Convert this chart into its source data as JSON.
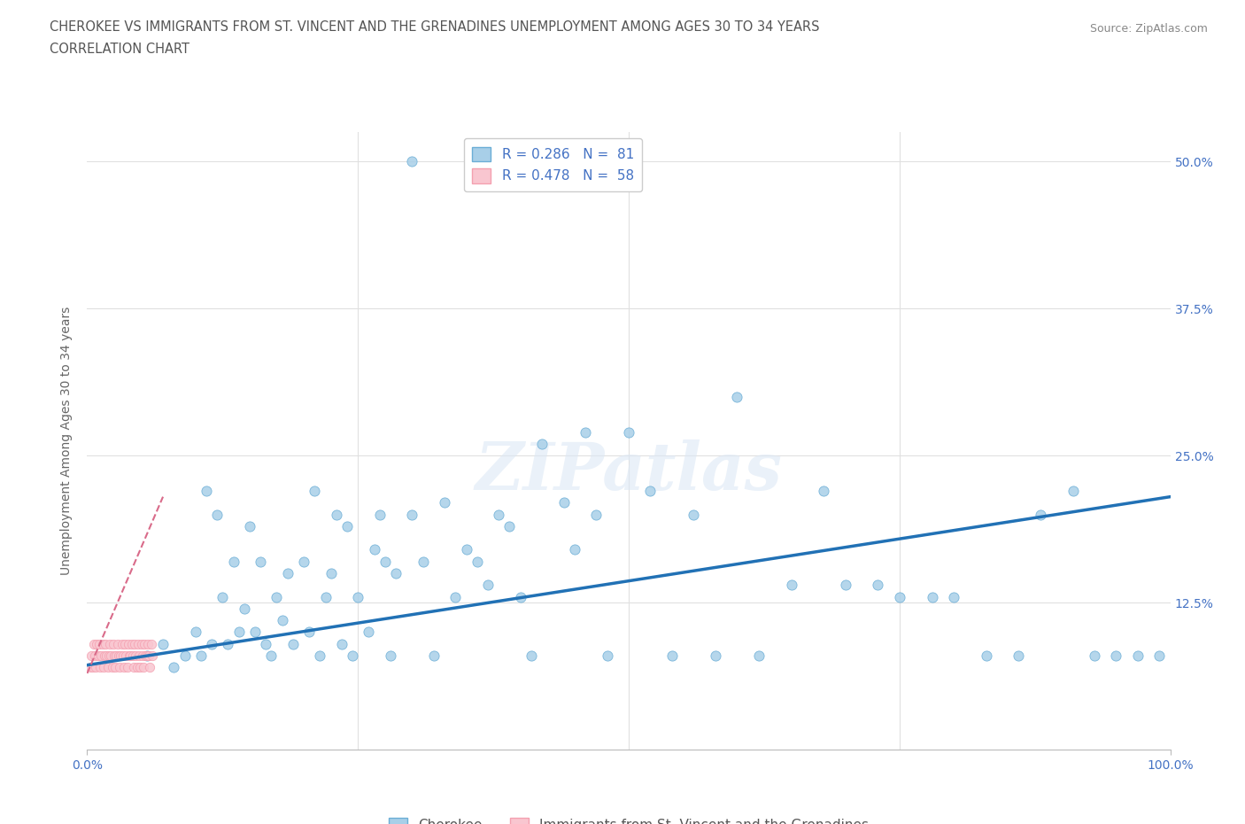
{
  "title_line1": "CHEROKEE VS IMMIGRANTS FROM ST. VINCENT AND THE GRENADINES UNEMPLOYMENT AMONG AGES 30 TO 34 YEARS",
  "title_line2": "CORRELATION CHART",
  "source": "Source: ZipAtlas.com",
  "ylabel": "Unemployment Among Ages 30 to 34 years",
  "xlim": [
    0,
    1.0
  ],
  "ylim": [
    0,
    0.525
  ],
  "ytick_positions": [
    0.0,
    0.125,
    0.25,
    0.375,
    0.5
  ],
  "ytick_labels_right": [
    "",
    "12.5%",
    "25.0%",
    "37.5%",
    "50.0%"
  ],
  "watermark": "ZIPatlas",
  "blue_scatter_color": "#a8cfe8",
  "blue_edge_color": "#6baed6",
  "pink_scatter_color": "#f9c6d0",
  "pink_edge_color": "#f4a0b0",
  "blue_line_color": "#2171b5",
  "pink_line_color": "#d96b8a",
  "title_color": "#555555",
  "axis_label_color": "#666666",
  "tick_color": "#4472C4",
  "source_color": "#888888",
  "grid_color": "#e0e0e0",
  "blue_scatter_x": [
    0.055,
    0.07,
    0.08,
    0.09,
    0.1,
    0.105,
    0.11,
    0.115,
    0.12,
    0.125,
    0.13,
    0.135,
    0.14,
    0.145,
    0.15,
    0.155,
    0.16,
    0.165,
    0.17,
    0.175,
    0.18,
    0.185,
    0.19,
    0.2,
    0.205,
    0.21,
    0.215,
    0.22,
    0.225,
    0.23,
    0.235,
    0.24,
    0.245,
    0.25,
    0.26,
    0.265,
    0.27,
    0.275,
    0.28,
    0.285,
    0.3,
    0.31,
    0.32,
    0.33,
    0.34,
    0.35,
    0.36,
    0.37,
    0.38,
    0.39,
    0.4,
    0.41,
    0.42,
    0.44,
    0.45,
    0.46,
    0.47,
    0.48,
    0.5,
    0.52,
    0.54,
    0.56,
    0.58,
    0.6,
    0.62,
    0.65,
    0.68,
    0.7,
    0.73,
    0.75,
    0.78,
    0.8,
    0.83,
    0.86,
    0.88,
    0.91,
    0.93,
    0.95,
    0.97,
    0.99,
    0.3
  ],
  "blue_scatter_y": [
    0.08,
    0.09,
    0.07,
    0.08,
    0.1,
    0.08,
    0.22,
    0.09,
    0.2,
    0.13,
    0.09,
    0.16,
    0.1,
    0.12,
    0.19,
    0.1,
    0.16,
    0.09,
    0.08,
    0.13,
    0.11,
    0.15,
    0.09,
    0.16,
    0.1,
    0.22,
    0.08,
    0.13,
    0.15,
    0.2,
    0.09,
    0.19,
    0.08,
    0.13,
    0.1,
    0.17,
    0.2,
    0.16,
    0.08,
    0.15,
    0.2,
    0.16,
    0.08,
    0.21,
    0.13,
    0.17,
    0.16,
    0.14,
    0.2,
    0.19,
    0.13,
    0.08,
    0.26,
    0.21,
    0.17,
    0.27,
    0.2,
    0.08,
    0.27,
    0.22,
    0.08,
    0.2,
    0.08,
    0.3,
    0.08,
    0.14,
    0.22,
    0.14,
    0.14,
    0.13,
    0.13,
    0.13,
    0.08,
    0.08,
    0.2,
    0.22,
    0.08,
    0.08,
    0.08,
    0.08,
    0.5
  ],
  "pink_scatter_x": [
    0.003,
    0.004,
    0.005,
    0.006,
    0.007,
    0.008,
    0.009,
    0.01,
    0.011,
    0.012,
    0.013,
    0.014,
    0.015,
    0.016,
    0.017,
    0.018,
    0.019,
    0.02,
    0.021,
    0.022,
    0.023,
    0.024,
    0.025,
    0.026,
    0.027,
    0.028,
    0.029,
    0.03,
    0.031,
    0.032,
    0.033,
    0.034,
    0.035,
    0.036,
    0.037,
    0.038,
    0.039,
    0.04,
    0.041,
    0.042,
    0.043,
    0.044,
    0.045,
    0.046,
    0.047,
    0.048,
    0.049,
    0.05,
    0.051,
    0.052,
    0.053,
    0.054,
    0.055,
    0.056,
    0.057,
    0.058,
    0.059,
    0.06
  ],
  "pink_scatter_y": [
    0.07,
    0.08,
    0.07,
    0.09,
    0.08,
    0.07,
    0.09,
    0.08,
    0.09,
    0.07,
    0.08,
    0.09,
    0.07,
    0.08,
    0.09,
    0.08,
    0.07,
    0.08,
    0.09,
    0.08,
    0.07,
    0.09,
    0.08,
    0.07,
    0.08,
    0.09,
    0.08,
    0.07,
    0.08,
    0.09,
    0.08,
    0.07,
    0.09,
    0.08,
    0.07,
    0.09,
    0.08,
    0.08,
    0.09,
    0.08,
    0.07,
    0.09,
    0.08,
    0.07,
    0.09,
    0.08,
    0.07,
    0.09,
    0.08,
    0.07,
    0.09,
    0.08,
    0.08,
    0.09,
    0.08,
    0.07,
    0.09,
    0.08
  ],
  "blue_trend_x": [
    0.0,
    1.0
  ],
  "blue_trend_y": [
    0.072,
    0.215
  ],
  "pink_trend_x": [
    0.0,
    0.07
  ],
  "pink_trend_y": [
    0.065,
    0.215
  ],
  "legend1_label": "R = 0.286   N =  81",
  "legend2_label": "R = 0.478   N =  58",
  "bottom_legend1": "Cherokee",
  "bottom_legend2": "Immigrants from St. Vincent and the Grenadines"
}
